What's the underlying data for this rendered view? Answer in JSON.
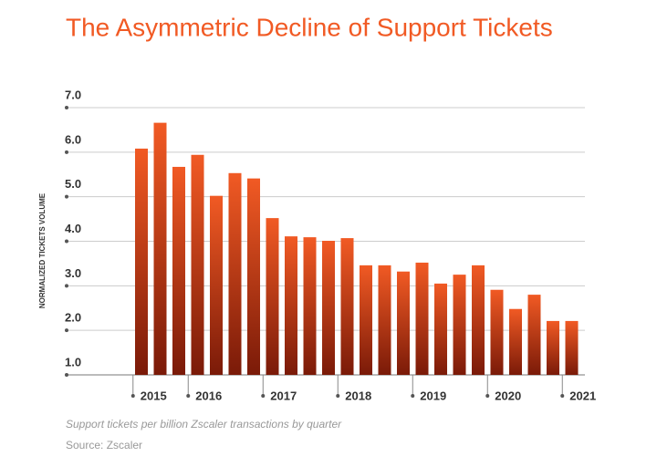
{
  "chart_data": {
    "type": "bar",
    "title": "The Asymmetric Decline of Support Tickets",
    "y_label": "NORMALIZED TICKETS VOLUME",
    "caption": "Support tickets per billion Zscaler transactions by quarter",
    "source": "Source: Zscaler",
    "categories": [
      null,
      null,
      null,
      null,
      null,
      null,
      null,
      null,
      null,
      null,
      null,
      null,
      null,
      null,
      null,
      null,
      null,
      null,
      null,
      null,
      null,
      null,
      null,
      null
    ],
    "values": [
      6.08,
      6.66,
      5.67,
      5.94,
      5.02,
      5.53,
      5.41,
      4.52,
      4.11,
      4.09,
      4.01,
      4.07,
      3.46,
      3.46,
      3.32,
      3.52,
      3.05,
      3.25,
      3.46,
      2.91,
      2.48,
      2.8,
      2.21,
      2.21
    ],
    "year_labels": [
      "2015",
      "2016",
      "2017",
      "2018",
      "2019",
      "2020",
      "2021"
    ],
    "color": "#f15a24",
    "ylim": [
      1,
      7
    ],
    "yticks": [
      {
        "value": 1,
        "label": "1.0"
      },
      {
        "value": 2,
        "label": "2.0"
      },
      {
        "value": 3,
        "label": "3.0"
      },
      {
        "value": 4,
        "label": "4.0"
      },
      {
        "value": 5,
        "label": "5.0"
      },
      {
        "value": 6,
        "label": "6.0"
      },
      {
        "value": 7,
        "label": "7.0"
      }
    ],
    "grid": true
  }
}
